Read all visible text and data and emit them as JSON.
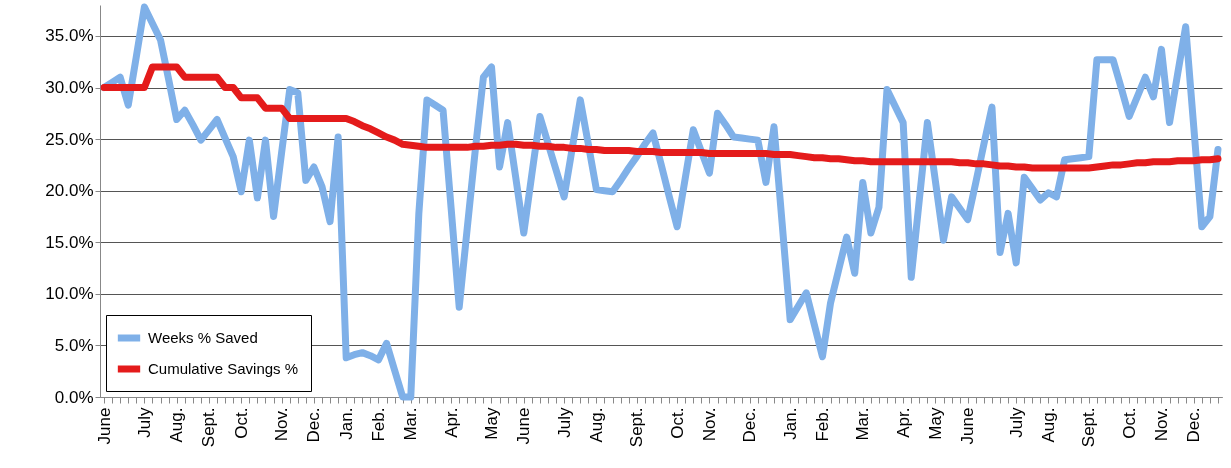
{
  "chart_data": {
    "type": "line",
    "categories": [
      "June",
      null,
      null,
      null,
      null,
      "July",
      null,
      null,
      null,
      "Aug.",
      null,
      null,
      null,
      "Sept.",
      null,
      null,
      null,
      "Oct.",
      null,
      null,
      null,
      null,
      "Nov.",
      null,
      null,
      null,
      "Dec.",
      null,
      null,
      null,
      "Jan.",
      null,
      null,
      null,
      "Feb.",
      null,
      null,
      null,
      "Mar.",
      null,
      null,
      null,
      null,
      "Apr.",
      null,
      null,
      null,
      null,
      "May",
      null,
      null,
      null,
      "June",
      null,
      null,
      null,
      null,
      "July",
      null,
      null,
      null,
      "Aug.",
      null,
      null,
      null,
      null,
      "Sept.",
      null,
      null,
      null,
      null,
      "Oct.",
      null,
      null,
      null,
      "Nov.",
      null,
      null,
      null,
      null,
      "Dec.",
      null,
      null,
      null,
      null,
      "Jan.",
      null,
      null,
      null,
      "Feb.",
      null,
      null,
      null,
      null,
      "Mar.",
      null,
      null,
      null,
      null,
      "Apr.",
      null,
      null,
      null,
      "May",
      null,
      null,
      null,
      "June",
      null,
      null,
      null,
      null,
      null,
      "July",
      null,
      null,
      null,
      "Aug.",
      null,
      null,
      null,
      null,
      "Sept.",
      null,
      null,
      null,
      null,
      "Oct.",
      null,
      null,
      null,
      "Nov.",
      null,
      null,
      null,
      "Dec.",
      null,
      null,
      null
    ],
    "ylim": [
      0,
      38
    ],
    "yticks": [
      {
        "value": 0,
        "label": "0.0%"
      },
      {
        "value": 5,
        "label": "5.0%"
      },
      {
        "value": 10,
        "label": "10.0%"
      },
      {
        "value": 15,
        "label": "15.0%"
      },
      {
        "value": 20,
        "label": "20.0%"
      },
      {
        "value": 25,
        "label": "25.0%"
      },
      {
        "value": 30,
        "label": "30.0%"
      },
      {
        "value": 35,
        "label": "35.0%"
      }
    ],
    "grid": "y",
    "legend": "bottom left",
    "line_style": "solid",
    "series": [
      {
        "name": "Weeks % Saved",
        "color": "#7fb0e8",
        "values": [
          30,
          30.5,
          31,
          28.3,
          33,
          37.8,
          36.2,
          34.6,
          30.8,
          26.9,
          27.8,
          26.4,
          24.9,
          25.9,
          26.9,
          25.1,
          23.3,
          19.9,
          24.9,
          19.3,
          24.9,
          17.5,
          23.7,
          29.8,
          29.5,
          21,
          22.3,
          20.4,
          17,
          25.2,
          3.8,
          4.1,
          4.3,
          4,
          3.6,
          5.2,
          2.6,
          0,
          0,
          17.8,
          28.8,
          28.3,
          27.8,
          18.3,
          8.7,
          16.4,
          24,
          31,
          32,
          22.3,
          26.6,
          21.3,
          15.9,
          21.6,
          27.2,
          24.6,
          22,
          19.4,
          24.1,
          28.8,
          24.5,
          20.1,
          20,
          19.9,
          21,
          22.2,
          23.3,
          24.5,
          25.6,
          22.6,
          19.5,
          16.5,
          21.2,
          25.9,
          23.8,
          21.7,
          27.5,
          26.4,
          25.2,
          25.1,
          25,
          24.9,
          20.8,
          26.2,
          16.9,
          7.5,
          8.8,
          10.1,
          7,
          3.9,
          9.1,
          12.3,
          15.5,
          12,
          20.8,
          15.9,
          18.4,
          29.8,
          28.2,
          26.6,
          11.6,
          19.1,
          26.6,
          20.9,
          15.2,
          19.4,
          18.3,
          17.2,
          20.8,
          24.5,
          28.1,
          14,
          17.8,
          13,
          21.3,
          20.2,
          19.1,
          19.8,
          19.4,
          23,
          23.1,
          23.2,
          23.3,
          32.7,
          32.7,
          32.7,
          30,
          27.2,
          29.1,
          31,
          29.1,
          33.7,
          26.6,
          31.3,
          35.9,
          26.2,
          16.5,
          17.5,
          24
        ]
      },
      {
        "name": "Cumulative  Savings %",
        "color": "#e41b1b",
        "values": [
          30,
          30,
          30,
          30,
          30,
          30,
          32,
          32,
          32,
          32,
          31,
          31,
          31,
          31,
          31,
          30,
          30,
          29,
          29,
          29,
          28,
          28,
          28,
          27,
          27,
          27,
          27,
          27,
          27,
          27,
          27,
          26.7,
          26.3,
          26,
          25.6,
          25.2,
          24.9,
          24.5,
          24.4,
          24.3,
          24.2,
          24.2,
          24.2,
          24.2,
          24.2,
          24.2,
          24.3,
          24.3,
          24.4,
          24.4,
          24.5,
          24.5,
          24.4,
          24.4,
          24.3,
          24.3,
          24.2,
          24.2,
          24.1,
          24.1,
          24,
          24,
          23.9,
          23.9,
          23.9,
          23.9,
          23.8,
          23.8,
          23.8,
          23.7,
          23.7,
          23.7,
          23.7,
          23.7,
          23.7,
          23.6,
          23.6,
          23.6,
          23.6,
          23.6,
          23.6,
          23.6,
          23.6,
          23.5,
          23.5,
          23.5,
          23.4,
          23.3,
          23.2,
          23.2,
          23.1,
          23.1,
          23,
          22.9,
          22.9,
          22.8,
          22.8,
          22.8,
          22.8,
          22.8,
          22.8,
          22.8,
          22.8,
          22.8,
          22.8,
          22.8,
          22.7,
          22.7,
          22.6,
          22.6,
          22.5,
          22.4,
          22.4,
          22.3,
          22.3,
          22.2,
          22.2,
          22.2,
          22.2,
          22.2,
          22.2,
          22.2,
          22.2,
          22.3,
          22.4,
          22.5,
          22.5,
          22.6,
          22.7,
          22.7,
          22.8,
          22.8,
          22.8,
          22.9,
          22.9,
          22.9,
          23,
          23,
          23.1
        ]
      }
    ]
  }
}
